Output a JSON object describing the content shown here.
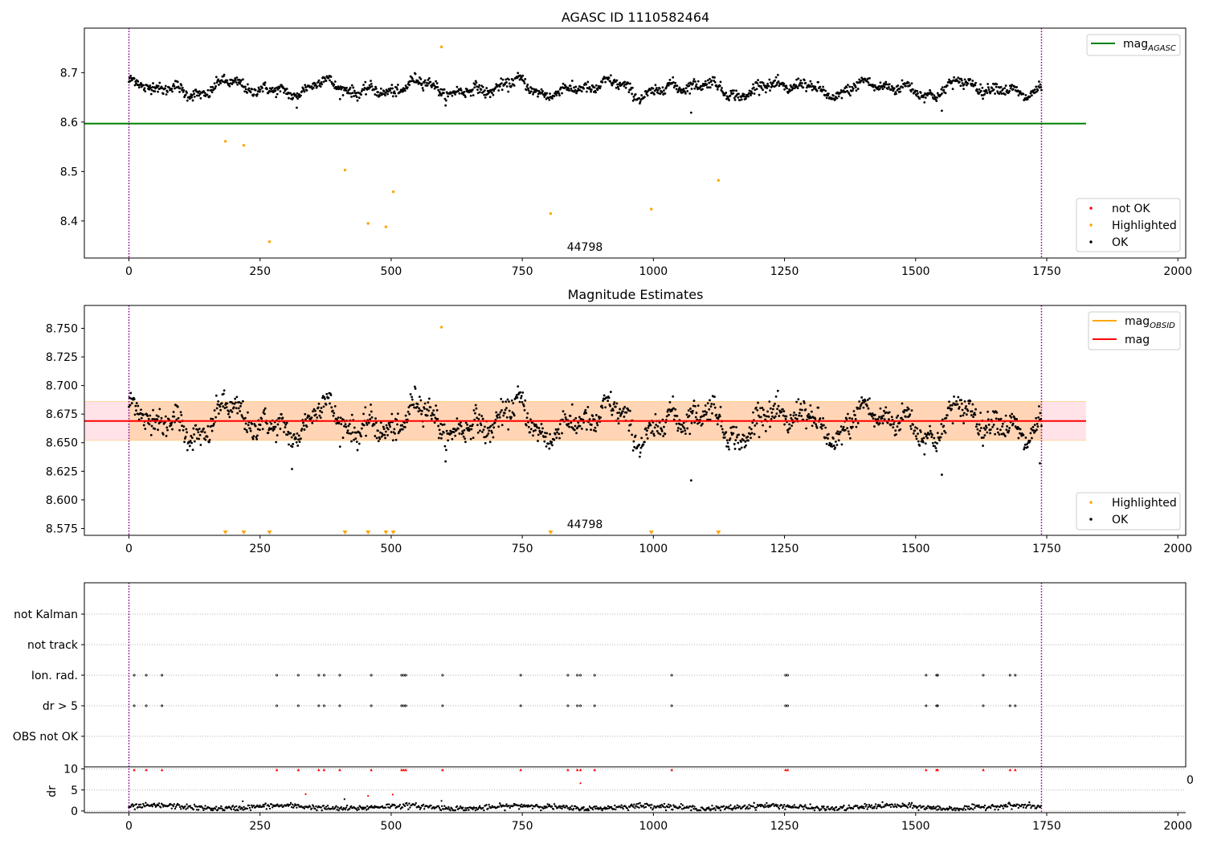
{
  "colors": {
    "ok": "#000000",
    "highlighted": "#ffa500",
    "not_ok": "#ff0000",
    "mag_agasc": "#008000",
    "mag_obsid": "#ffa500",
    "mag": "#ff0000",
    "band_outer": "#ffc0cb",
    "band_inner": "#ffa500",
    "obs_boundary": "#800080"
  },
  "chart_data": [
    {
      "type": "scatter",
      "title": "AGASC ID 1110582464",
      "xlim": [
        -85,
        2015
      ],
      "ylim": [
        8.325,
        8.79
      ],
      "xticks": [
        0,
        250,
        500,
        750,
        1000,
        1250,
        1500,
        1750,
        2000
      ],
      "yticks": [
        8.4,
        8.5,
        8.6,
        8.7
      ],
      "annotation": "44798",
      "obs_boundaries": [
        0,
        1740
      ],
      "mag_agasc": 8.597,
      "legend_lines": [
        {
          "name": "mag",
          "sub": "AGASC"
        }
      ],
      "legend_points": [
        "not OK",
        "Highlighted",
        "OK"
      ],
      "ok_series": {
        "baseline": 8.668,
        "amplitude": 0.022,
        "x_range": [
          0,
          1740
        ]
      },
      "highlighted": [
        [
          184,
          8.561
        ],
        [
          219,
          8.553
        ],
        [
          268,
          8.358
        ],
        [
          412,
          8.503
        ],
        [
          456,
          8.395
        ],
        [
          490,
          8.388
        ],
        [
          504,
          8.459
        ],
        [
          596,
          8.752
        ],
        [
          804,
          8.415
        ],
        [
          996,
          8.424
        ],
        [
          1124,
          8.482
        ]
      ],
      "ok_outliers": [
        [
          320,
          8.629
        ],
        [
          1072,
          8.619
        ],
        [
          1550,
          8.623
        ]
      ]
    },
    {
      "type": "scatter",
      "title": "Magnitude Estimates",
      "xlim": [
        -85,
        2015
      ],
      "ylim": [
        8.569,
        8.77
      ],
      "xticks": [
        0,
        250,
        500,
        750,
        1000,
        1250,
        1500,
        1750,
        2000
      ],
      "yticks": [
        8.575,
        8.6,
        8.625,
        8.65,
        8.675,
        8.7,
        8.725,
        8.75
      ],
      "annotation": "44798",
      "obs_boundaries": [
        0,
        1740
      ],
      "mag": 8.669,
      "mag_band": [
        8.652,
        8.686
      ],
      "legend_lines": [
        {
          "name": "mag",
          "sub": "OBSID"
        },
        {
          "name": "mag",
          "sub": ""
        }
      ],
      "legend_points": [
        "Highlighted",
        "OK"
      ],
      "highlighted": [
        [
          596,
          8.751
        ]
      ],
      "highlighted_markers_x": [
        184,
        219,
        268,
        412,
        456,
        490,
        504,
        804,
        996,
        1124
      ],
      "ok_outliers": [
        [
          311,
          8.627
        ],
        [
          1072,
          8.617
        ],
        [
          1550,
          8.622
        ],
        [
          1737,
          8.632
        ]
      ]
    },
    {
      "type": "scatter",
      "title": "",
      "xlim": [
        -85,
        2015
      ],
      "obs_boundaries": [
        0,
        1740
      ],
      "flag_rows": [
        "not Kalman",
        "not track",
        "Ion. rad.",
        "dr > 5",
        "OBS not OK"
      ],
      "flag_x": [
        10,
        33,
        63,
        282,
        323,
        362,
        372,
        402,
        462,
        520,
        524,
        528,
        598,
        747,
        837,
        855,
        861,
        888,
        1035,
        1252,
        1256,
        1520,
        1540,
        1542,
        1629,
        1680,
        1690
      ],
      "sub_ylabel": "dr",
      "sub_yticks": [
        0,
        5,
        10
      ],
      "sub_ylim": [
        -0.4,
        10.5
      ],
      "dr_outliers": [
        [
          217,
          2.3
        ],
        [
          337,
          4.0
        ],
        [
          411,
          2.8
        ],
        [
          456,
          3.6
        ],
        [
          503,
          3.9
        ],
        [
          596,
          2.4
        ],
        [
          861,
          6.6
        ]
      ],
      "xticks": [
        0,
        250,
        500,
        750,
        1000,
        1250,
        1500,
        1750,
        2000
      ],
      "stray_tick": "0"
    }
  ]
}
